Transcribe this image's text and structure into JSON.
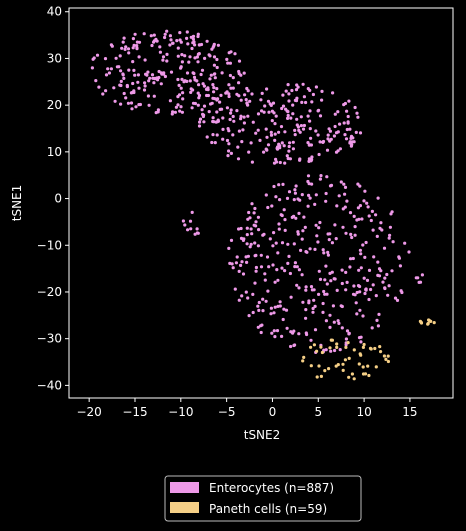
{
  "chart_data": {
    "type": "scatter",
    "title": "",
    "xlabel": "tSNE2",
    "ylabel": "tSNE1",
    "xlim": [
      -22.2,
      19.7
    ],
    "ylim": [
      -42.7,
      40.8
    ],
    "xticks": [
      -20,
      -15,
      -10,
      -5,
      0,
      5,
      10,
      15
    ],
    "yticks": [
      -40,
      -30,
      -20,
      -10,
      0,
      10,
      20,
      30,
      40
    ],
    "grid": false,
    "legend_position": "bottom-center, below plot",
    "background": "#000000",
    "foreground": "#ffffff",
    "series": [
      {
        "name": "Enterocytes (n=887)",
        "color": "#EE99E8",
        "count": 887,
        "clusters": [
          {
            "x_range": [
              -20,
              -3
            ],
            "y_range": [
              18,
              36
            ],
            "approx_points": 250
          },
          {
            "x_range": [
              -8,
              10
            ],
            "y_range": [
              7,
              25
            ],
            "approx_points": 240
          },
          {
            "x_range": [
              -5,
              15
            ],
            "y_range": [
              -33,
              5
            ],
            "approx_points": 360
          },
          {
            "x_range": [
              -10,
              -8
            ],
            "y_range": [
              -10,
              -2
            ],
            "approx_points": 10
          },
          {
            "x_range": [
              15,
              18
            ],
            "y_range": [
              -18,
              -16
            ],
            "approx_points": 5
          }
        ]
      },
      {
        "name": "Paneth cells (n=59)",
        "color": "#F5CF86",
        "count": 59,
        "clusters": [
          {
            "x_range": [
              2.5,
              13
            ],
            "y_range": [
              -39,
              -30
            ],
            "approx_points": 50
          },
          {
            "x_range": [
              16,
              18
            ],
            "y_range": [
              -27,
              -26
            ],
            "approx_points": 9
          }
        ]
      }
    ]
  }
}
